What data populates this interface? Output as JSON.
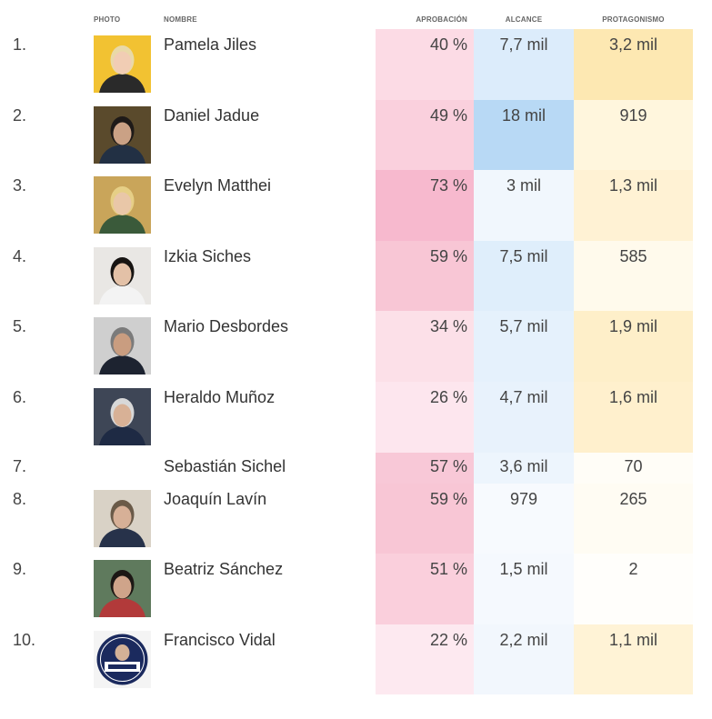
{
  "headers": {
    "photo": "PHOTO",
    "nombre": "NOMBRE",
    "aprobacion": "APROBACIÓN",
    "alcance": "ALCANCE",
    "protagonismo": "PROTAGONISMO"
  },
  "rows": [
    {
      "rank": "1.",
      "name": "Pamela Jiles",
      "aprobacion": "40 %",
      "alcance": "7,7 mil",
      "protagonismo": "3,2 mil",
      "photo": "portrait-photo",
      "colors": {
        "apr": "#fcdbe5",
        "alc": "#dcecfb",
        "pro": "#fde8b2"
      }
    },
    {
      "rank": "2.",
      "name": "Daniel Jadue",
      "aprobacion": "49 %",
      "alcance": "18 mil",
      "protagonismo": "919",
      "photo": "portrait-photo",
      "colors": {
        "apr": "#fad0dd",
        "alc": "#b8d9f5",
        "pro": "#fff6dd"
      }
    },
    {
      "rank": "3.",
      "name": "Evelyn Matthei",
      "aprobacion": "73 %",
      "alcance": "3 mil",
      "protagonismo": "1,3 mil",
      "photo": "portrait-photo",
      "colors": {
        "apr": "#f7b9ce",
        "alc": "#f1f7fd",
        "pro": "#fff2d4"
      }
    },
    {
      "rank": "4.",
      "name": "Izkia Siches",
      "aprobacion": "59 %",
      "alcance": "7,5 mil",
      "protagonismo": "585",
      "photo": "portrait-photo",
      "colors": {
        "apr": "#f8c6d5",
        "alc": "#dfeefb",
        "pro": "#fffaec"
      }
    },
    {
      "rank": "5.",
      "name": "Mario Desbordes",
      "aprobacion": "34 %",
      "alcance": "5,7 mil",
      "protagonismo": "1,9 mil",
      "photo": "portrait-photo",
      "colors": {
        "apr": "#fce0e8",
        "alc": "#e5f1fc",
        "pro": "#feefc9"
      }
    },
    {
      "rank": "6.",
      "name": "Heraldo Muñoz",
      "aprobacion": "26 %",
      "alcance": "4,7 mil",
      "protagonismo": "1,6 mil",
      "photo": "portrait-photo",
      "colors": {
        "apr": "#fde6ee",
        "alc": "#e8f2fc",
        "pro": "#fff0cd"
      }
    },
    {
      "rank": "7.",
      "name": "Sebastián Sichel",
      "aprobacion": "57 %",
      "alcance": "3,6 mil",
      "protagonismo": "70",
      "photo": "",
      "colors": {
        "apr": "#f8c8d7",
        "alc": "#edf5fd",
        "pro": "#fffdf7"
      }
    },
    {
      "rank": "8.",
      "name": "Joaquín Lavín",
      "aprobacion": "59 %",
      "alcance": "979",
      "protagonismo": "265",
      "photo": "portrait-photo",
      "colors": {
        "apr": "#f8c6d5",
        "alc": "#f7fafe",
        "pro": "#fffcf3"
      }
    },
    {
      "rank": "9.",
      "name": "Beatriz Sánchez",
      "aprobacion": "51 %",
      "alcance": "1,5 mil",
      "protagonismo": "2",
      "photo": "portrait-photo",
      "colors": {
        "apr": "#facfdc",
        "alc": "#f5f9fe",
        "pro": "#fffefb"
      }
    },
    {
      "rank": "10.",
      "name": "Francisco Vidal",
      "aprobacion": "22 %",
      "alcance": "2,2 mil",
      "protagonismo": "1,1 mil",
      "photo": "campaign-logo",
      "colors": {
        "apr": "#fde9f0",
        "alc": "#f2f7fd",
        "pro": "#fff3d6"
      }
    }
  ]
}
